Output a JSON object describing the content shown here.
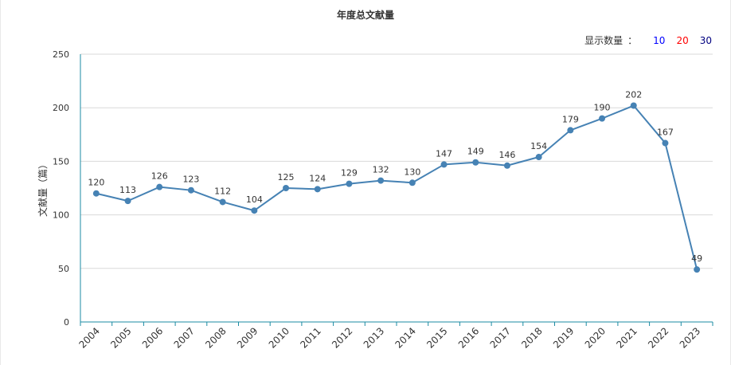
{
  "chart_data": {
    "type": "line",
    "title": "年度总文献量",
    "ylabel": "文献量（篇）",
    "xlabel": "",
    "categories": [
      "2004",
      "2005",
      "2006",
      "2007",
      "2008",
      "2009",
      "2010",
      "2011",
      "2012",
      "2013",
      "2014",
      "2015",
      "2016",
      "2017",
      "2018",
      "2019",
      "2020",
      "2021",
      "2022",
      "2023"
    ],
    "series": [
      {
        "values": [
          120,
          113,
          126,
          123,
          112,
          104,
          125,
          124,
          129,
          132,
          130,
          147,
          149,
          146,
          154,
          179,
          190,
          202,
          167,
          49
        ]
      }
    ],
    "ylim": [
      0,
      250
    ],
    "yticks": [
      0,
      50,
      100,
      150,
      200,
      250
    ],
    "grid": true,
    "data_labels": true,
    "line_color": "#4682b4",
    "axis_color": "#1b8ba3"
  },
  "toolbar": {
    "label": "显示数量",
    "separator": "：",
    "options": [
      {
        "label": "10",
        "color": "#0000ff"
      },
      {
        "label": "20",
        "color": "#ff0000"
      },
      {
        "label": "30",
        "color": "#000080"
      }
    ]
  }
}
